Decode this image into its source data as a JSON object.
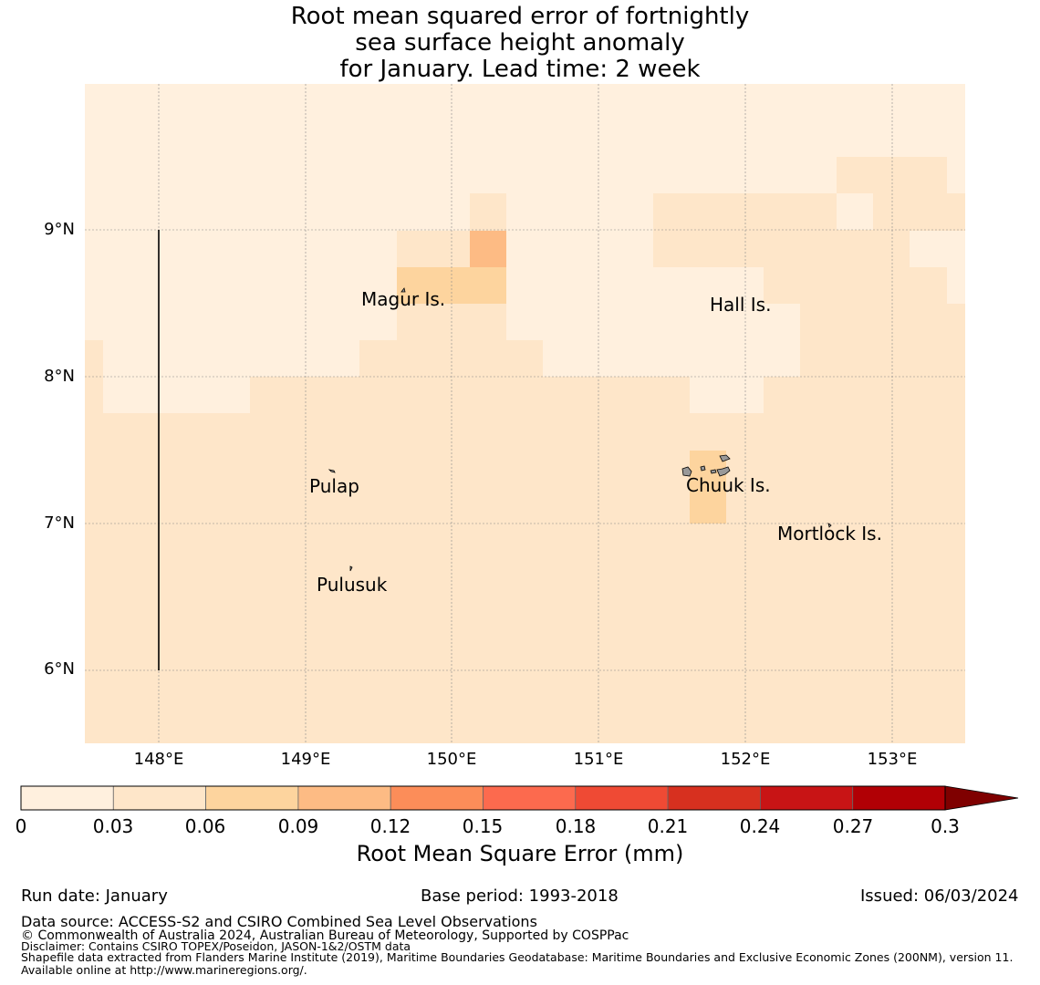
{
  "title": {
    "line1": "Root mean squared error of fortnightly",
    "line2": "sea surface height anomaly",
    "line3": "for January. Lead time: 2 week"
  },
  "map": {
    "lat_ticks": [
      "9°N",
      "8°N",
      "7°N",
      "6°N"
    ],
    "lon_ticks": [
      "148°E",
      "149°E",
      "150°E",
      "151°E",
      "152°E",
      "153°E"
    ],
    "places": {
      "magur": "Magur Is.",
      "hall": "Hall Is.",
      "pulap": "Pulap",
      "chuuk": "Chuuk Is.",
      "mortlock": "Mortlock Is.",
      "pulusuk": "Pulusuk"
    }
  },
  "colorbar": {
    "title": "Root Mean Square Error (mm)",
    "ticks": [
      "0",
      "0.03",
      "0.06",
      "0.09",
      "0.12",
      "0.15",
      "0.18",
      "0.21",
      "0.24",
      "0.27",
      "0.3"
    ],
    "colors": [
      "#fff0de",
      "#fee6c9",
      "#fdd49e",
      "#fdbb84",
      "#fc8d59",
      "#fc6a4e",
      "#ef4a34",
      "#d7301f",
      "#c81415",
      "#b10005"
    ],
    "extend_color": "#7f0000"
  },
  "footer": {
    "run_date": "Run date: January",
    "base_period": "Base period: 1993-2018",
    "issued": "Issued: 06/03/2024",
    "data_source": "Data source: ACCESS-S2 and CSIRO Combined Sea Level Observations",
    "copyright": "© Commonwealth of Australia 2024, Australian Bureau of Meteorology, Supported by COSPPac",
    "disclaimer": "Disclaimer: Contains CSIRO TOPEX/Poseidon, JASON-1&2/OSTM data",
    "shapefile": "Shapefile data extracted from Flanders Marine Institute (2019), Maritime Boundaries Geodatabase: Maritime Boundaries and Exclusive Economic Zones (200NM), version 11. Available online at http://www.marineregions.org/."
  }
}
